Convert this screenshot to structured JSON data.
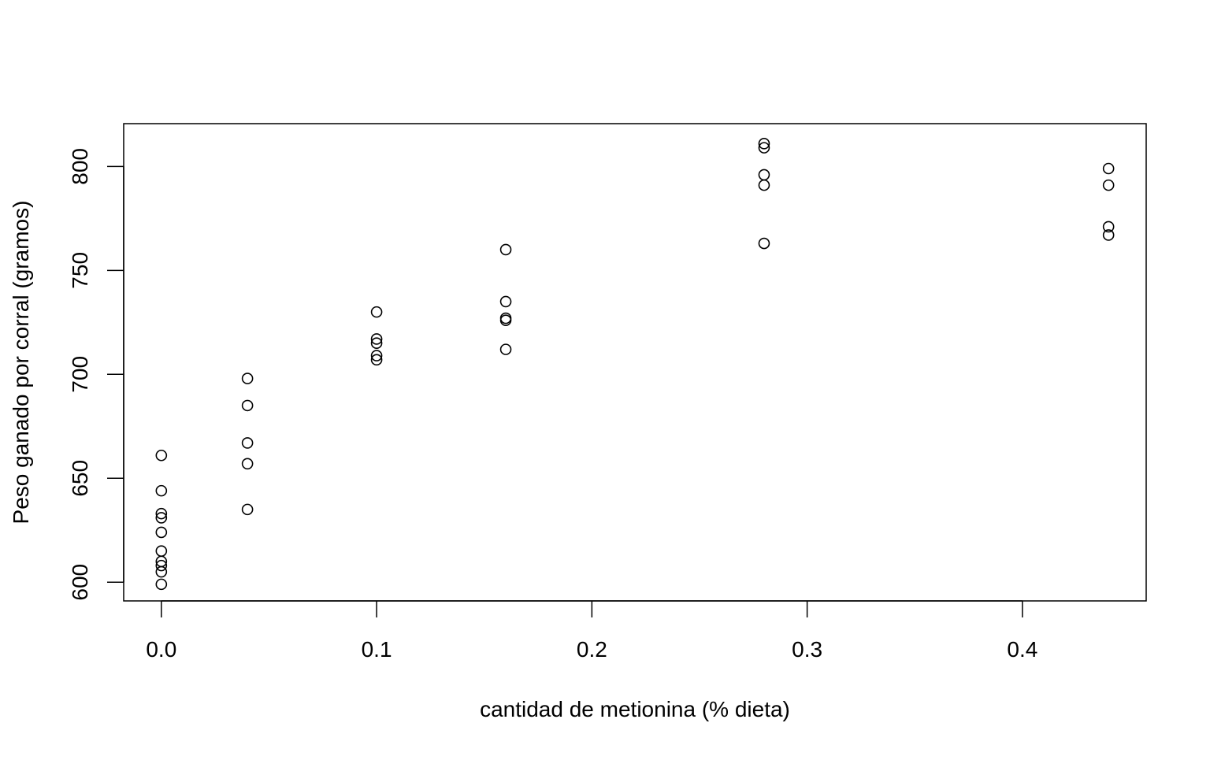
{
  "chart_data": {
    "type": "scatter",
    "title": "",
    "xlabel": "cantidad de metionina (% dieta)",
    "ylabel": "Peso ganado por corral (gramos)",
    "xlim": [
      -0.0175,
      0.4575
    ],
    "ylim": [
      591,
      820.6
    ],
    "x_ticks": [
      0.0,
      0.1,
      0.2,
      0.3,
      0.4
    ],
    "x_tick_labels": [
      "0.0",
      "0.1",
      "0.2",
      "0.3",
      "0.4"
    ],
    "y_ticks": [
      600,
      650,
      700,
      750,
      800
    ],
    "y_tick_labels": [
      "600",
      "650",
      "700",
      "750",
      "800"
    ],
    "grid": false,
    "legend": "none",
    "marker": "open-circle",
    "colors": {
      "points": "#000000",
      "axes": "#000000",
      "background": "#ffffff"
    },
    "points": [
      {
        "x": 0.0,
        "y": 661
      },
      {
        "x": 0.0,
        "y": 644
      },
      {
        "x": 0.0,
        "y": 633
      },
      {
        "x": 0.0,
        "y": 631
      },
      {
        "x": 0.0,
        "y": 624
      },
      {
        "x": 0.0,
        "y": 615
      },
      {
        "x": 0.0,
        "y": 610
      },
      {
        "x": 0.0,
        "y": 608
      },
      {
        "x": 0.0,
        "y": 605
      },
      {
        "x": 0.0,
        "y": 599
      },
      {
        "x": 0.04,
        "y": 698
      },
      {
        "x": 0.04,
        "y": 685
      },
      {
        "x": 0.04,
        "y": 667
      },
      {
        "x": 0.04,
        "y": 657
      },
      {
        "x": 0.04,
        "y": 635
      },
      {
        "x": 0.1,
        "y": 730
      },
      {
        "x": 0.1,
        "y": 717
      },
      {
        "x": 0.1,
        "y": 715
      },
      {
        "x": 0.1,
        "y": 709
      },
      {
        "x": 0.1,
        "y": 707
      },
      {
        "x": 0.16,
        "y": 760
      },
      {
        "x": 0.16,
        "y": 735
      },
      {
        "x": 0.16,
        "y": 727
      },
      {
        "x": 0.16,
        "y": 726
      },
      {
        "x": 0.16,
        "y": 712
      },
      {
        "x": 0.28,
        "y": 811
      },
      {
        "x": 0.28,
        "y": 809
      },
      {
        "x": 0.28,
        "y": 796
      },
      {
        "x": 0.28,
        "y": 791
      },
      {
        "x": 0.28,
        "y": 763
      },
      {
        "x": 0.44,
        "y": 799
      },
      {
        "x": 0.44,
        "y": 791
      },
      {
        "x": 0.44,
        "y": 771
      },
      {
        "x": 0.44,
        "y": 767
      }
    ]
  }
}
